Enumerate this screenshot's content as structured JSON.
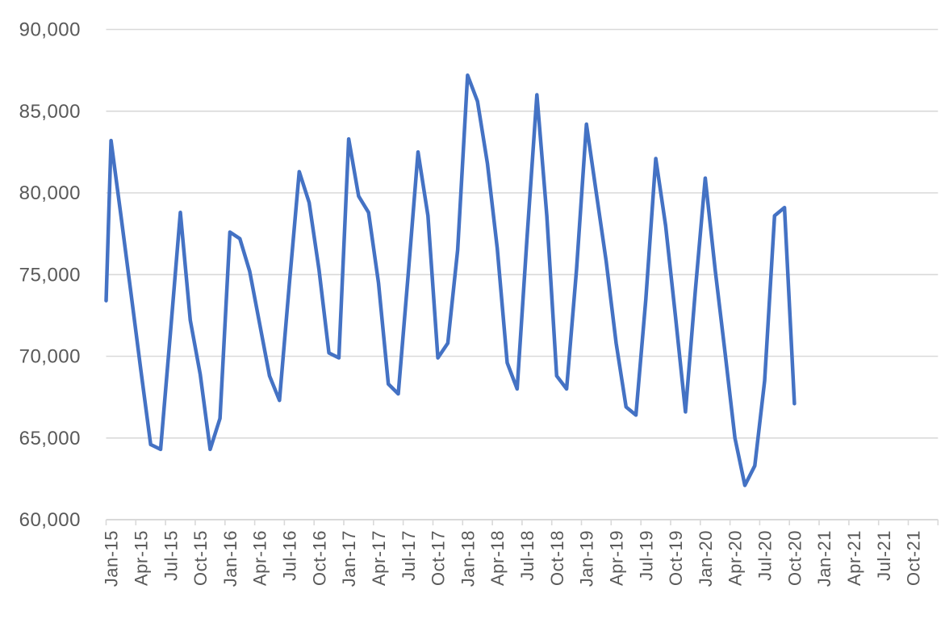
{
  "chart_data": {
    "type": "line",
    "title": "",
    "xlabel": "",
    "ylabel": "",
    "legend": false,
    "grid": true,
    "categories": [
      "Jan-15",
      "Feb-15",
      "Mar-15",
      "Apr-15",
      "May-15",
      "Jun-15",
      "Jul-15",
      "Aug-15",
      "Sep-15",
      "Oct-15",
      "Nov-15",
      "Dec-15",
      "Jan-16",
      "Feb-16",
      "Mar-16",
      "Apr-16",
      "May-16",
      "Jun-16",
      "Jul-16",
      "Aug-16",
      "Sep-16",
      "Oct-16",
      "Nov-16",
      "Dec-16",
      "Jan-17",
      "Feb-17",
      "Mar-17",
      "Apr-17",
      "May-17",
      "Jun-17",
      "Jul-17",
      "Aug-17",
      "Sep-17",
      "Oct-17",
      "Nov-17",
      "Dec-17",
      "Jan-18",
      "Feb-18",
      "Mar-18",
      "Apr-18",
      "May-18",
      "Jun-18",
      "Jul-18",
      "Aug-18",
      "Sep-18",
      "Oct-18",
      "Nov-18",
      "Dec-18",
      "Jan-19",
      "Feb-19",
      "Mar-19",
      "Apr-19",
      "May-19",
      "Jun-19",
      "Jul-19",
      "Aug-19",
      "Sep-19",
      "Oct-19",
      "Nov-19",
      "Dec-19",
      "Jan-20",
      "Feb-20",
      "Mar-20",
      "Apr-20",
      "May-20",
      "Jun-20",
      "Jul-20",
      "Aug-20",
      "Sep-20",
      "Oct-20"
    ],
    "values": [
      83200,
      78600,
      73900,
      69200,
      64600,
      64300,
      71500,
      78800,
      72200,
      68900,
      64300,
      66200,
      77600,
      77200,
      75200,
      72000,
      68800,
      67300,
      74400,
      81300,
      79400,
      75300,
      70200,
      69900,
      83300,
      79800,
      78800,
      74500,
      68300,
      67700,
      75000,
      82500,
      78600,
      69900,
      70800,
      76500,
      87200,
      85600,
      81800,
      76600,
      69600,
      68000,
      77200,
      86000,
      78600,
      68800,
      68000,
      75300,
      84200,
      80000,
      75800,
      70800,
      66900,
      66400,
      73500,
      82100,
      78000,
      72400,
      66600,
      74000,
      80900,
      75300,
      70200,
      65000,
      62100,
      63300,
      68500,
      78600,
      79100,
      67100
    ],
    "edge_start_value": 73400,
    "x_axis": {
      "total_slots": 84,
      "label_interval": 3,
      "tick_labels": [
        "Jan-15",
        "Apr-15",
        "Jul-15",
        "Oct-15",
        "Jan-16",
        "Apr-16",
        "Jul-16",
        "Oct-16",
        "Jan-17",
        "Apr-17",
        "Jul-17",
        "Oct-17",
        "Jan-18",
        "Apr-18",
        "Jul-18",
        "Oct-18",
        "Jan-19",
        "Apr-19",
        "Jul-19",
        "Oct-19",
        "Jan-20",
        "Apr-20",
        "Jul-20",
        "Oct-20",
        "Jan-21",
        "Apr-21",
        "Jul-21",
        "Oct-21"
      ]
    },
    "y_axis": {
      "min": 60000,
      "max": 90000,
      "step": 5000,
      "tick_labels": [
        "60,000",
        "65,000",
        "70,000",
        "75,000",
        "80,000",
        "85,000",
        "90,000"
      ]
    },
    "ylim": [
      60000,
      90000
    ],
    "colors": {
      "series_line": "#4472C4",
      "gridline": "#D9D9D9",
      "axis_line": "#D9D9D9",
      "tick_mark": "#D9D9D9",
      "label_text": "#595959",
      "background": "#FFFFFF"
    }
  }
}
